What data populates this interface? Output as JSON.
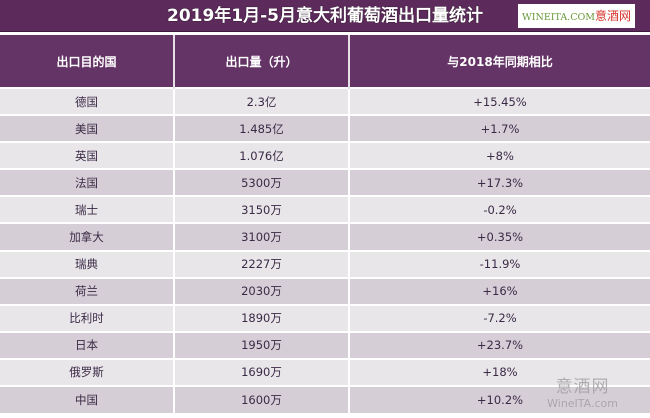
{
  "title": "2019年1月-5月意大利葡萄酒出口量统计",
  "logo": {
    "en": "WINEITA.COM",
    "cn": "意酒网"
  },
  "columns": [
    "出口目的国",
    "出口量（升）",
    "与2018年同期相比"
  ],
  "rows": [
    [
      "德国",
      "2.3亿",
      "+15.45%"
    ],
    [
      "美国",
      "1.485亿",
      "+1.7%"
    ],
    [
      "英国",
      "1.076亿",
      "+8%"
    ],
    [
      "法国",
      "5300万",
      "+17.3%"
    ],
    [
      "瑞士",
      "3150万",
      "-0.2%"
    ],
    [
      "加拿大",
      "3100万",
      "+0.35%"
    ],
    [
      "瑞典",
      "2227万",
      "-11.9%"
    ],
    [
      "荷兰",
      "2030万",
      "+16%"
    ],
    [
      "比利时",
      "1890万",
      "-7.2%"
    ],
    [
      "日本",
      "1950万",
      "+23.7%"
    ],
    [
      "俄罗斯",
      "1690万",
      "+18%"
    ],
    [
      "中国",
      "1600万",
      "+10.2%"
    ]
  ],
  "watermark": {
    "cn": "意酒网",
    "en": "WineITA.com"
  },
  "colors": {
    "header": "#653466",
    "row_light": "#e9e6ea",
    "row_dark": "#d6ced7"
  }
}
